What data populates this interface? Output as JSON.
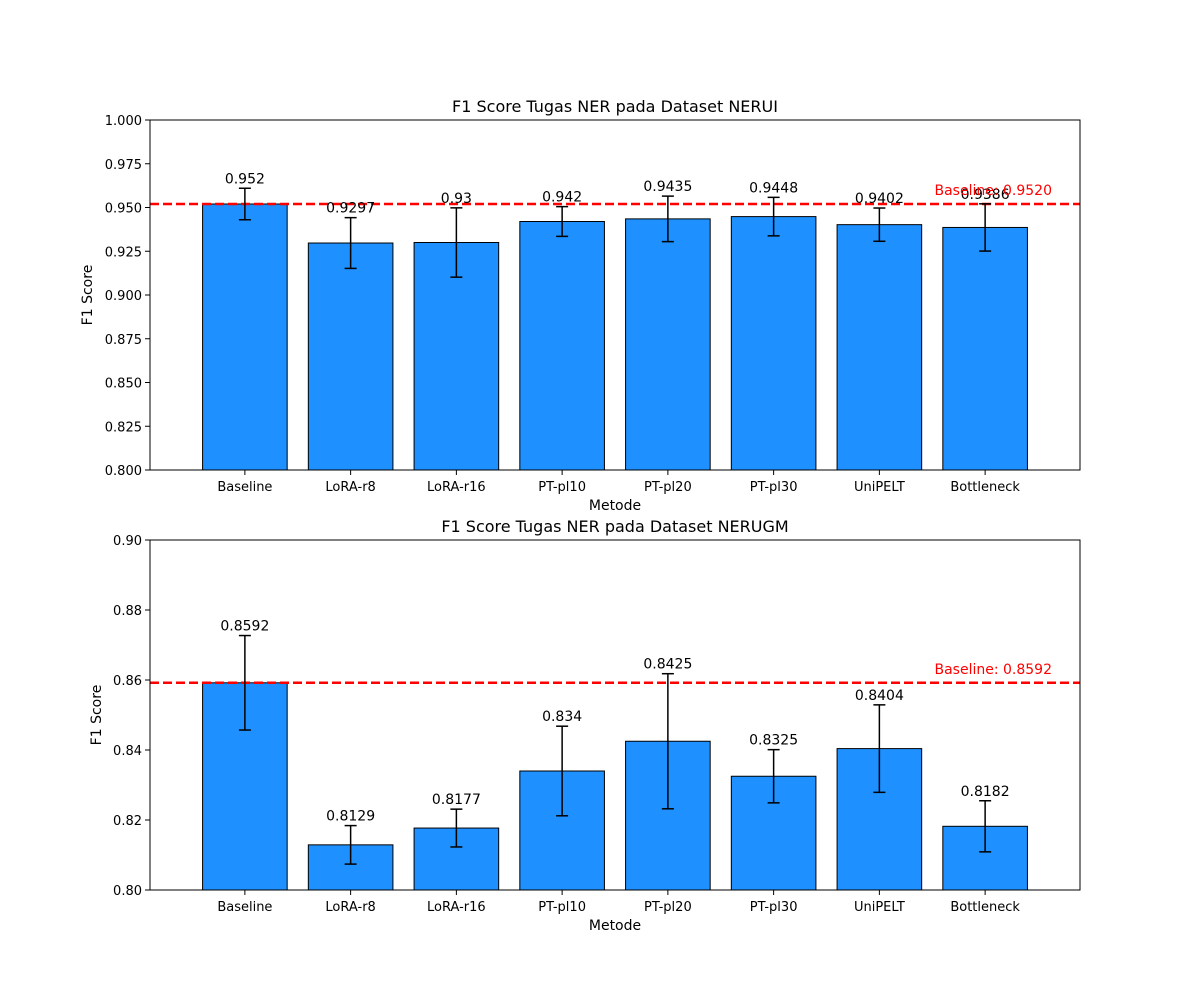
{
  "chart_data": [
    {
      "type": "bar",
      "title": "F1 Score Tugas NER pada Dataset NERUI",
      "xlabel": "Metode",
      "ylabel": "F1 Score",
      "categories": [
        "Baseline",
        "LoRA-r8",
        "LoRA-r16",
        "PT-pl10",
        "PT-pl20",
        "PT-pl30",
        "UniPELT",
        "Bottleneck"
      ],
      "values": [
        0.952,
        0.9297,
        0.93,
        0.942,
        0.9435,
        0.9448,
        0.9402,
        0.9386
      ],
      "value_labels": [
        "0.952",
        "0.9297",
        "0.93",
        "0.942",
        "0.9435",
        "0.9448",
        "0.9402",
        "0.9386"
      ],
      "error": [
        0.009,
        0.0145,
        0.0198,
        0.0085,
        0.013,
        0.011,
        0.0095,
        0.0135
      ],
      "ylim": [
        0.8,
        1.0
      ],
      "yticks": [
        "0.800",
        "0.825",
        "0.850",
        "0.875",
        "0.900",
        "0.925",
        "0.950",
        "0.975",
        "1.000"
      ],
      "ytick_values": [
        0.8,
        0.825,
        0.85,
        0.875,
        0.9,
        0.925,
        0.95,
        0.975,
        1.0
      ],
      "baseline": {
        "value": 0.952,
        "label": "Baseline: 0.9520"
      },
      "bar_color": "#1e90ff",
      "baseline_color": "#ff0000",
      "grid": false
    },
    {
      "type": "bar",
      "title": "F1 Score Tugas NER pada Dataset NERUGM",
      "xlabel": "Metode",
      "ylabel": "F1 Score",
      "categories": [
        "Baseline",
        "LoRA-r8",
        "LoRA-r16",
        "PT-pl10",
        "PT-pl20",
        "PT-pl30",
        "UniPELT",
        "Bottleneck"
      ],
      "values": [
        0.8592,
        0.8129,
        0.8177,
        0.834,
        0.8425,
        0.8325,
        0.8404,
        0.8182
      ],
      "value_labels": [
        "0.8592",
        "0.8129",
        "0.8177",
        "0.834",
        "0.8425",
        "0.8325",
        "0.8404",
        "0.8182"
      ],
      "error": [
        0.0135,
        0.0055,
        0.0054,
        0.0128,
        0.0193,
        0.0076,
        0.0125,
        0.0073
      ],
      "ylim": [
        0.8,
        0.9
      ],
      "yticks": [
        "0.80",
        "0.82",
        "0.84",
        "0.86",
        "0.88",
        "0.90"
      ],
      "ytick_values": [
        0.8,
        0.82,
        0.84,
        0.86,
        0.88,
        0.9
      ],
      "baseline": {
        "value": 0.8592,
        "label": "Baseline: 0.8592"
      },
      "bar_color": "#1e90ff",
      "baseline_color": "#ff0000",
      "grid": false
    }
  ]
}
